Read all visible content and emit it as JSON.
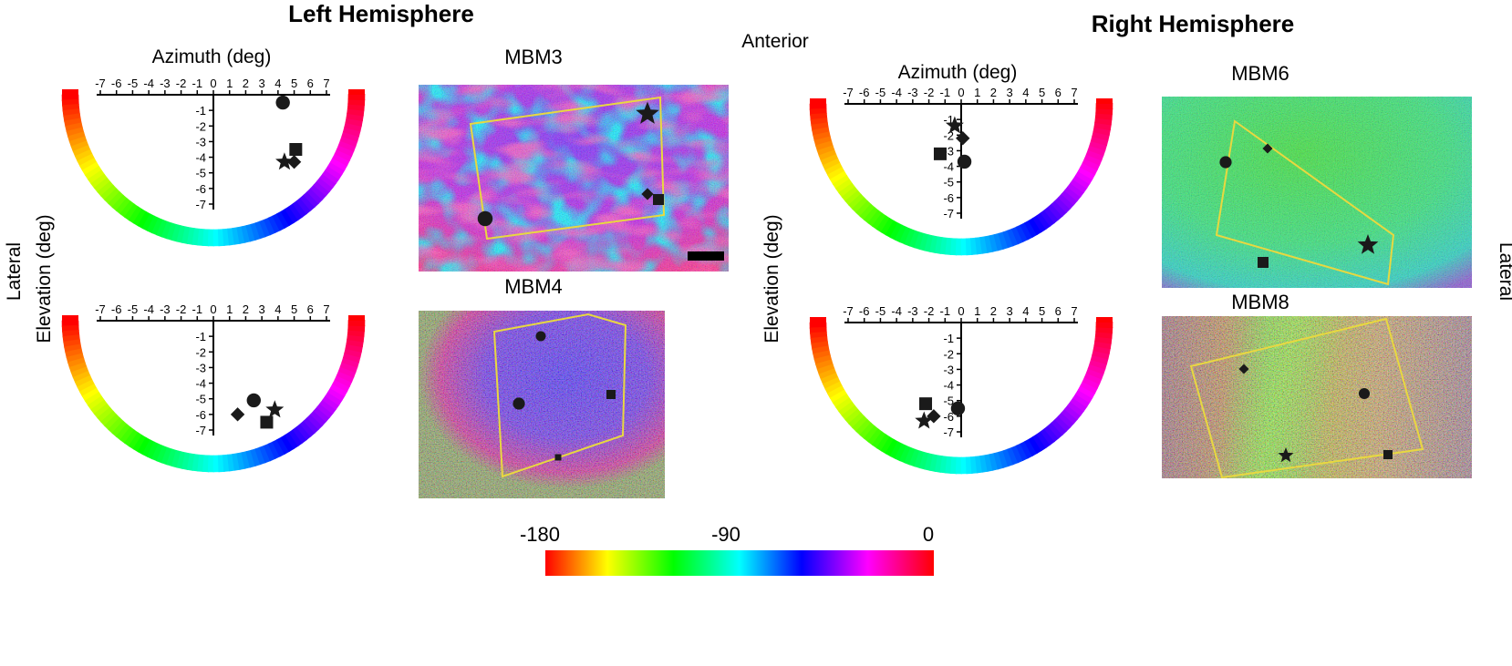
{
  "titles": {
    "left": "Left Hemisphere",
    "right": "Right Hemisphere",
    "anterior": "Anterior",
    "lateral_left": "Lateral",
    "lateral_right": "Lateral"
  },
  "axes": {
    "azimuth_label": "Azimuth (deg)",
    "elevation_label": "Elevation (deg)",
    "azimuth_ticks": [
      "-7",
      "-6",
      "-5",
      "-4",
      "-3",
      "-2",
      "-1",
      "0",
      "1",
      "2",
      "3",
      "4",
      "5",
      "6",
      "7"
    ],
    "elevation_ticks": [
      "-1",
      "-2",
      "-3",
      "-4",
      "-5",
      "-6",
      "-7"
    ]
  },
  "maps": {
    "mbm3": "MBM3",
    "mbm4": "MBM4",
    "mbm6": "MBM6",
    "mbm8": "MBM8"
  },
  "colorbar": {
    "labels": [
      "-180",
      "-90",
      "0"
    ],
    "colors": [
      "#ff0000",
      "#ffff00",
      "#00ff00",
      "#00ffff",
      "#0000ff",
      "#ff00ff",
      "#ff0000"
    ]
  },
  "chart_data": [
    {
      "type": "scatter",
      "panel": "left-top",
      "xlim": [
        -7,
        7
      ],
      "ylim": [
        -7,
        0
      ],
      "points": [
        {
          "marker": "circle",
          "x": 4.3,
          "y": -0.5
        },
        {
          "marker": "square",
          "x": 5.1,
          "y": -3.5
        },
        {
          "marker": "star",
          "x": 4.4,
          "y": -4.3
        },
        {
          "marker": "diamond",
          "x": 5.0,
          "y": -4.3
        }
      ]
    },
    {
      "type": "scatter",
      "panel": "left-bottom",
      "xlim": [
        -7,
        7
      ],
      "ylim": [
        -7,
        0
      ],
      "points": [
        {
          "marker": "circle",
          "x": 2.5,
          "y": -5.1
        },
        {
          "marker": "diamond",
          "x": 1.5,
          "y": -6.0
        },
        {
          "marker": "square",
          "x": 3.3,
          "y": -6.5
        },
        {
          "marker": "star",
          "x": 3.8,
          "y": -5.7
        }
      ]
    },
    {
      "type": "scatter",
      "panel": "right-top",
      "xlim": [
        -7,
        7
      ],
      "ylim": [
        -7,
        0
      ],
      "points": [
        {
          "marker": "star",
          "x": -0.4,
          "y": -1.4
        },
        {
          "marker": "diamond",
          "x": 0.1,
          "y": -2.2
        },
        {
          "marker": "square",
          "x": -1.3,
          "y": -3.2
        },
        {
          "marker": "circle",
          "x": 0.2,
          "y": -3.7
        }
      ]
    },
    {
      "type": "scatter",
      "panel": "right-bottom",
      "xlim": [
        -7,
        7
      ],
      "ylim": [
        -7,
        0
      ],
      "points": [
        {
          "marker": "square",
          "x": -2.2,
          "y": -5.2
        },
        {
          "marker": "circle",
          "x": -0.2,
          "y": -5.5
        },
        {
          "marker": "diamond",
          "x": -1.7,
          "y": -6.0
        },
        {
          "marker": "star",
          "x": -2.3,
          "y": -6.3
        }
      ]
    }
  ]
}
